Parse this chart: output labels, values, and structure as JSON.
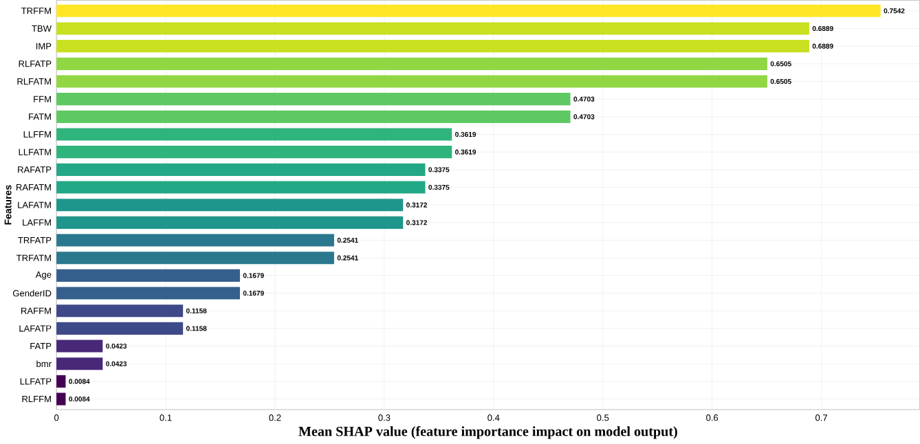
{
  "chart_data": {
    "type": "bar",
    "orientation": "horizontal",
    "xlabel": "Mean SHAP value (feature importance impact on model output)",
    "ylabel": "Features",
    "categories": [
      "TRFFM",
      "TBW",
      "IMP",
      "RLFATP",
      "RLFATM",
      "FFM",
      "FATM",
      "LLFFM",
      "LLFATM",
      "RAFATP",
      "RAFATM",
      "LAFATM",
      "LAFFM",
      "TRFATP",
      "TRFATM",
      "Age",
      "GenderID",
      "RAFFM",
      "LAFATP",
      "FATP",
      "bmr",
      "LLFATP",
      "RLFFM"
    ],
    "values": [
      0.7542,
      0.6889,
      0.6889,
      0.6505,
      0.6505,
      0.4703,
      0.4703,
      0.3619,
      0.3619,
      0.3375,
      0.3375,
      0.3172,
      0.3172,
      0.2541,
      0.2541,
      0.1679,
      0.1679,
      0.1158,
      0.1158,
      0.0423,
      0.0423,
      0.0084,
      0.0084
    ],
    "colors": [
      "#fde725",
      "#c8e020",
      "#c8e020",
      "#90d743",
      "#90d743",
      "#5ec962",
      "#5ec962",
      "#2fb47c",
      "#2fb47c",
      "#22a884",
      "#22a884",
      "#1f968b",
      "#1f968b",
      "#2a788e",
      "#2a788e",
      "#355f8d",
      "#355f8d",
      "#3e4989",
      "#3e4989",
      "#482878",
      "#482878",
      "#440154",
      "#440154"
    ],
    "xlim": [
      0,
      0.79
    ],
    "xticks": [
      0,
      0.1,
      0.2,
      0.3,
      0.4,
      0.5,
      0.6,
      0.7
    ],
    "grid": true,
    "data_labels": true
  }
}
